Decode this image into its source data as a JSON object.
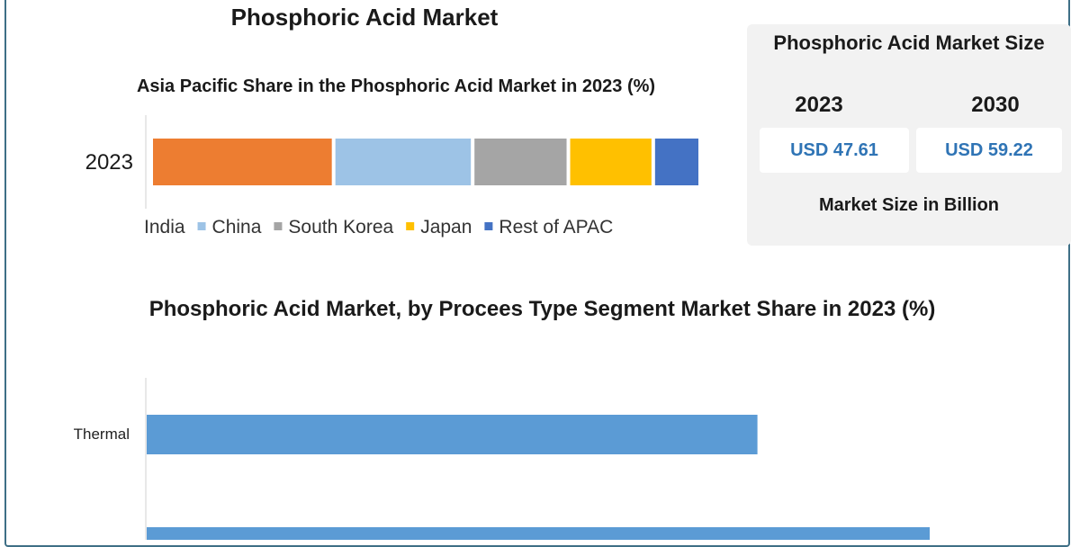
{
  "title": "Phosphoric Acid Market",
  "market_size": {
    "title": "Phosphoric Acid Market Size",
    "years": [
      "2023",
      "2030"
    ],
    "values": [
      "USD 47.61",
      "USD 59.22"
    ],
    "unit_label": "Market Size in Billion",
    "value_color": "#2f74b5"
  },
  "chart_data": [
    {
      "type": "bar",
      "orientation": "horizontal-stacked",
      "title": "Asia Pacific Share in the Phosphoric Acid Market in 2023 (%)",
      "categories": [
        "2023"
      ],
      "series": [
        {
          "name": "India",
          "values": [
            33
          ],
          "color": "#ed7d31"
        },
        {
          "name": "China",
          "values": [
            25
          ],
          "color": "#9dc3e6"
        },
        {
          "name": "South Korea",
          "values": [
            17
          ],
          "color": "#a5a5a5"
        },
        {
          "name": "Japan",
          "values": [
            15
          ],
          "color": "#ffc000"
        },
        {
          "name": "Rest of APAC",
          "values": [
            8
          ],
          "color": "#4472c4"
        }
      ],
      "legend": "bottom"
    },
    {
      "type": "bar",
      "orientation": "horizontal",
      "title": "Phosphoric Acid Market, by Procees Type Segment Market Share in 2023 (%)",
      "categories": [
        "Thermal",
        ""
      ],
      "values": [
        78,
        100
      ],
      "color": "#5b9bd5",
      "xlim": [
        0,
        100
      ]
    }
  ]
}
